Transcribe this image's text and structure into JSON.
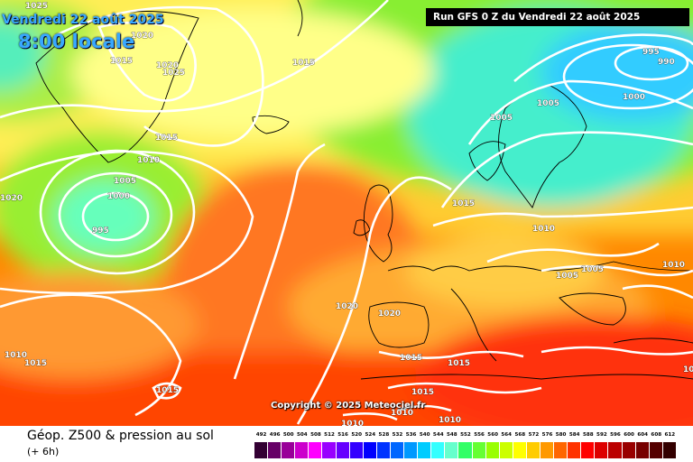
{
  "map": {
    "date_line": "Vendredi 22 août 2025",
    "time_line": "8:00 locale",
    "run_info": "Run GFS 0 Z du Vendredi 22 août 2025",
    "copyright": "Copyright © 2025 Meteociel.fr",
    "isobar_labels": [
      "1025",
      "1020",
      "1015",
      "1020",
      "1025",
      "1015",
      "1015",
      "1010",
      "1005",
      "1000",
      "995",
      "1020",
      "995",
      "990",
      "1000",
      "1005",
      "1005",
      "1015",
      "1010",
      "1005",
      "1005",
      "1010",
      "1020",
      "1020",
      "1010",
      "1015",
      "1015",
      "1015",
      "1015",
      "1010",
      "1010",
      "1010",
      "1015",
      "1015"
    ],
    "colors": {
      "low": "#33ccff",
      "mid": "#ffff66",
      "high": "#ff3300",
      "isobar": "#ffffff"
    }
  },
  "footer": {
    "parameter": "Géop. Z500 & pression au sol",
    "forecast_step": "(+ 6h)",
    "scale": {
      "labels": [
        "492",
        "496",
        "500",
        "504",
        "508",
        "512",
        "516",
        "520",
        "524",
        "528",
        "532",
        "536",
        "540",
        "544",
        "548",
        "552",
        "556",
        "560",
        "564",
        "568",
        "572",
        "576",
        "580",
        "584",
        "588",
        "592",
        "596",
        "600",
        "604",
        "608",
        "612"
      ],
      "colors": [
        "#330033",
        "#660066",
        "#990099",
        "#cc00cc",
        "#ff00ff",
        "#9900ff",
        "#6600ff",
        "#3300ff",
        "#0000ff",
        "#0033ff",
        "#0066ff",
        "#0099ff",
        "#00ccff",
        "#33ffff",
        "#66ffcc",
        "#33ff66",
        "#66ff33",
        "#99ff00",
        "#ccff00",
        "#ffff00",
        "#ffcc00",
        "#ff9900",
        "#ff6600",
        "#ff3300",
        "#ff0000",
        "#dd0000",
        "#bb0000",
        "#990000",
        "#770000",
        "#550000",
        "#330000"
      ]
    }
  }
}
